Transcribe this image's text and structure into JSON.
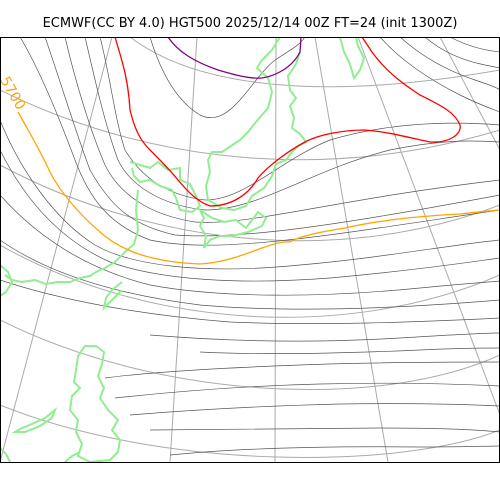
{
  "title": "ECMWF(CC BY 4.0) HGT500 2025/12/14 00Z FT=24 (init 1300Z)",
  "map": {
    "contour_label": "5700",
    "colors": {
      "grid": "#aaaaaa",
      "height_contour": "#555555",
      "coastline": "#90ee90",
      "contour_5700": "#ffa500",
      "contour_5400": "#ff0000",
      "contour_5100": "#800080"
    }
  }
}
